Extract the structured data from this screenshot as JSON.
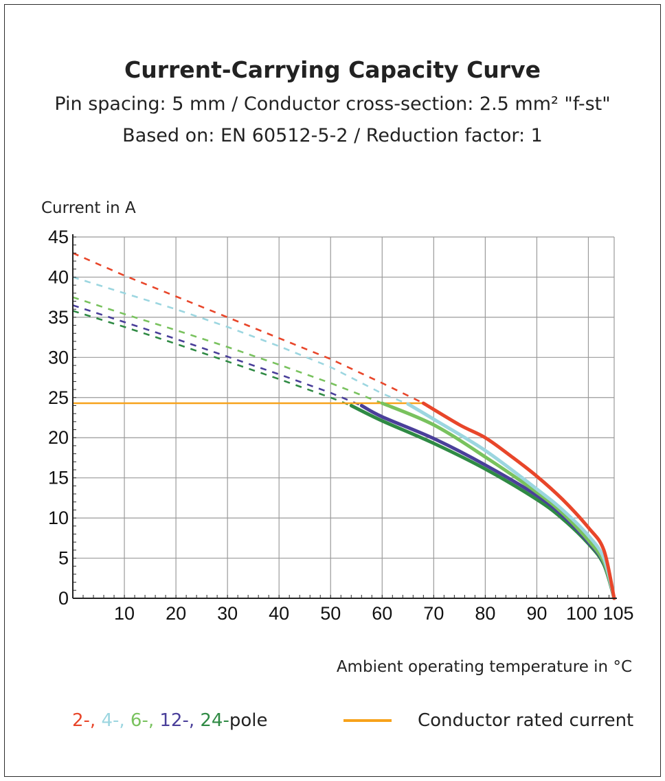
{
  "chart_data": {
    "type": "line",
    "title": "Current-Carrying Capacity Curve",
    "subtitle_lines": [
      "Pin spacing: 5 mm / Conductor cross-section: 2.5 mm² \"f-st\"",
      "Based on: EN 60512-5-2 / Reduction factor: 1"
    ],
    "ylabel": "Current in A",
    "xlabel": "Ambient operating temperature in °C",
    "xlim": [
      0,
      105
    ],
    "ylim": [
      0,
      45
    ],
    "x_ticks": [
      10,
      20,
      30,
      40,
      50,
      60,
      70,
      80,
      90,
      100,
      105
    ],
    "y_ticks": [
      0,
      5,
      10,
      15,
      20,
      25,
      30,
      35,
      40,
      45
    ],
    "grid": true,
    "series": [
      {
        "name": "2-",
        "color": "#e8462a",
        "dashed": [
          [
            0,
            43
          ],
          [
            10,
            40.2
          ],
          [
            20,
            37.6
          ],
          [
            30,
            35
          ],
          [
            40,
            32.4
          ],
          [
            50,
            29.8
          ],
          [
            60,
            26.8
          ],
          [
            68,
            24.3
          ]
        ],
        "solid": [
          [
            68,
            24.3
          ],
          [
            75,
            21.6
          ],
          [
            80,
            20
          ],
          [
            85,
            17.7
          ],
          [
            90,
            15.2
          ],
          [
            95,
            12.3
          ],
          [
            100,
            8.8
          ],
          [
            103,
            6
          ],
          [
            105,
            0
          ]
        ]
      },
      {
        "name": "4-",
        "color": "#9cd6e0",
        "dashed": [
          [
            0,
            40
          ],
          [
            10,
            38
          ],
          [
            20,
            36
          ],
          [
            30,
            33.8
          ],
          [
            40,
            31.4
          ],
          [
            50,
            28.8
          ],
          [
            60,
            25.5
          ],
          [
            65,
            24.2
          ]
        ],
        "solid": [
          [
            65,
            24.2
          ],
          [
            70,
            22.3
          ],
          [
            80,
            18.4
          ],
          [
            90,
            13.6
          ],
          [
            95,
            11
          ],
          [
            100,
            7.8
          ],
          [
            103,
            5
          ],
          [
            105,
            0
          ]
        ]
      },
      {
        "name": "6-",
        "color": "#79c25e",
        "dashed": [
          [
            0,
            37.5
          ],
          [
            10,
            35.4
          ],
          [
            20,
            33.4
          ],
          [
            30,
            31.3
          ],
          [
            40,
            29.1
          ],
          [
            50,
            26.8
          ],
          [
            60,
            24.3
          ]
        ],
        "solid": [
          [
            60,
            24.3
          ],
          [
            70,
            21.6
          ],
          [
            80,
            17.6
          ],
          [
            90,
            13.2
          ],
          [
            95,
            10.6
          ],
          [
            100,
            7.2
          ],
          [
            103,
            4.5
          ],
          [
            105,
            0
          ]
        ]
      },
      {
        "name": "12-",
        "color": "#4a3f9a",
        "dashed": [
          [
            0,
            36.5
          ],
          [
            10,
            34.4
          ],
          [
            20,
            32.3
          ],
          [
            30,
            30.1
          ],
          [
            40,
            27.9
          ],
          [
            50,
            25.6
          ],
          [
            56,
            24
          ]
        ],
        "solid": [
          [
            56,
            24
          ],
          [
            60,
            22.6
          ],
          [
            70,
            19.9
          ],
          [
            80,
            16.6
          ],
          [
            90,
            12.8
          ],
          [
            95,
            10.3
          ],
          [
            100,
            7
          ],
          [
            103,
            4.4
          ],
          [
            105,
            0
          ]
        ]
      },
      {
        "name": "24-",
        "color": "#2f8a44",
        "dashed": [
          [
            0,
            35.8
          ],
          [
            10,
            33.8
          ],
          [
            20,
            31.7
          ],
          [
            30,
            29.5
          ],
          [
            40,
            27.3
          ],
          [
            50,
            25
          ],
          [
            54,
            24
          ]
        ],
        "solid": [
          [
            54,
            24
          ],
          [
            60,
            22.1
          ],
          [
            70,
            19.3
          ],
          [
            80,
            16.1
          ],
          [
            90,
            12.3
          ],
          [
            95,
            9.9
          ],
          [
            100,
            6.8
          ],
          [
            103,
            4.2
          ],
          [
            105,
            0
          ]
        ]
      }
    ],
    "rated_current": {
      "name": "Conductor rated current",
      "color": "#f7a21b",
      "points": [
        [
          0,
          24.3
        ],
        [
          68,
          24.3
        ]
      ]
    },
    "legend": {
      "poles_parts": [
        {
          "text": "2-, ",
          "color": "#e8462a"
        },
        {
          "text": "4-, ",
          "color": "#9cd6e0"
        },
        {
          "text": "6-, ",
          "color": "#79c25e"
        },
        {
          "text": "12-, ",
          "color": "#4a3f9a"
        },
        {
          "text": "24-",
          "color": "#2f8a44"
        },
        {
          "text": "pole",
          "color": "#222222"
        }
      ],
      "rated_label": "Conductor rated current"
    }
  }
}
